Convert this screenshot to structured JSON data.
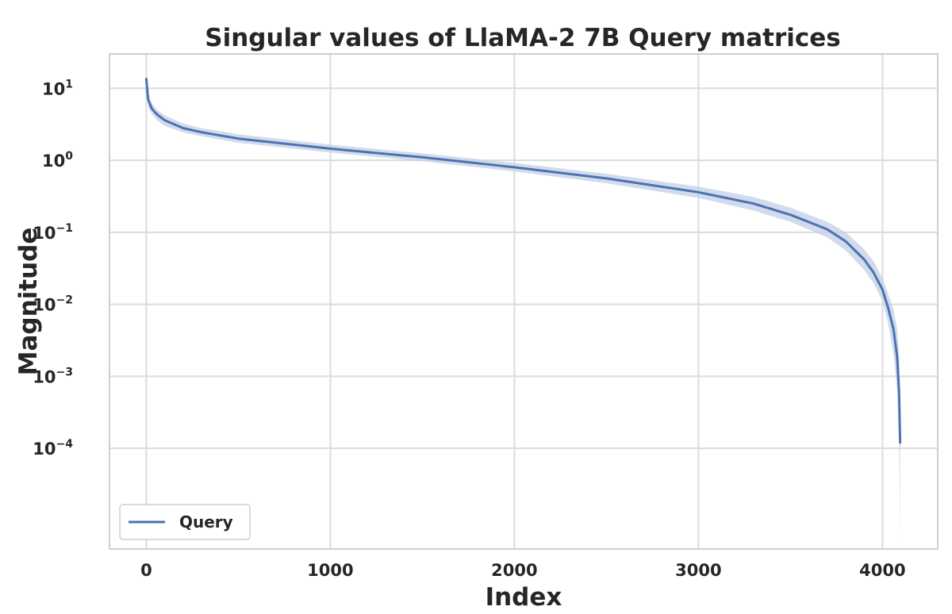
{
  "chart_data": {
    "type": "line",
    "title": "Singular values of LlaMA-2 7B Query matrices",
    "xlabel": "Index",
    "ylabel": "Magnitude",
    "yscale": "log",
    "xlim": [
      -200,
      4300
    ],
    "ylim": [
      4e-06,
      30
    ],
    "x_ticks": [
      0,
      1000,
      2000,
      3000,
      4000
    ],
    "x_tick_labels": [
      "0",
      "1000",
      "2000",
      "3000",
      "4000"
    ],
    "y_ticks": [
      10,
      1,
      0.1,
      0.01,
      0.001,
      0.0001
    ],
    "y_tick_labels": [
      {
        "base": "10",
        "exp": "1"
      },
      {
        "base": "10",
        "exp": "0"
      },
      {
        "base": "10",
        "exp": "−1"
      },
      {
        "base": "10",
        "exp": "−2"
      },
      {
        "base": "10",
        "exp": "−3"
      },
      {
        "base": "10",
        "exp": "−4"
      }
    ],
    "grid": true,
    "legend_position": "lower-left",
    "colors": {
      "line": "#4c72b0",
      "band": "#c3cfe5",
      "grid": "#dcdcdc",
      "frame": "#cfcfcf"
    },
    "series": [
      {
        "name": "Query",
        "x": [
          0,
          10,
          30,
          60,
          100,
          200,
          300,
          500,
          1000,
          1500,
          2000,
          2500,
          3000,
          3300,
          3500,
          3700,
          3800,
          3900,
          3950,
          4000,
          4030,
          4060,
          4080,
          4090,
          4094,
          4096
        ],
        "y": [
          13.5,
          7.0,
          5.2,
          4.3,
          3.6,
          2.8,
          2.45,
          2.0,
          1.45,
          1.1,
          0.8,
          0.56,
          0.36,
          0.25,
          0.175,
          0.11,
          0.075,
          0.042,
          0.028,
          0.016,
          0.009,
          0.0045,
          0.0018,
          0.0006,
          0.0002,
          0.00012
        ],
        "band_lower": [
          10.0,
          5.6,
          4.4,
          3.6,
          3.0,
          2.45,
          2.15,
          1.75,
          1.28,
          0.97,
          0.7,
          0.48,
          0.3,
          0.2,
          0.14,
          0.085,
          0.056,
          0.03,
          0.02,
          0.011,
          0.0055,
          0.002,
          0.0006,
          0.0001,
          2e-05,
          5e-06
        ],
        "band_upper": [
          15.0,
          8.5,
          6.2,
          5.0,
          4.2,
          3.25,
          2.8,
          2.3,
          1.65,
          1.25,
          0.92,
          0.65,
          0.43,
          0.31,
          0.22,
          0.14,
          0.1,
          0.058,
          0.04,
          0.023,
          0.014,
          0.0085,
          0.0045,
          0.002,
          0.0008,
          0.0004
        ]
      }
    ]
  }
}
